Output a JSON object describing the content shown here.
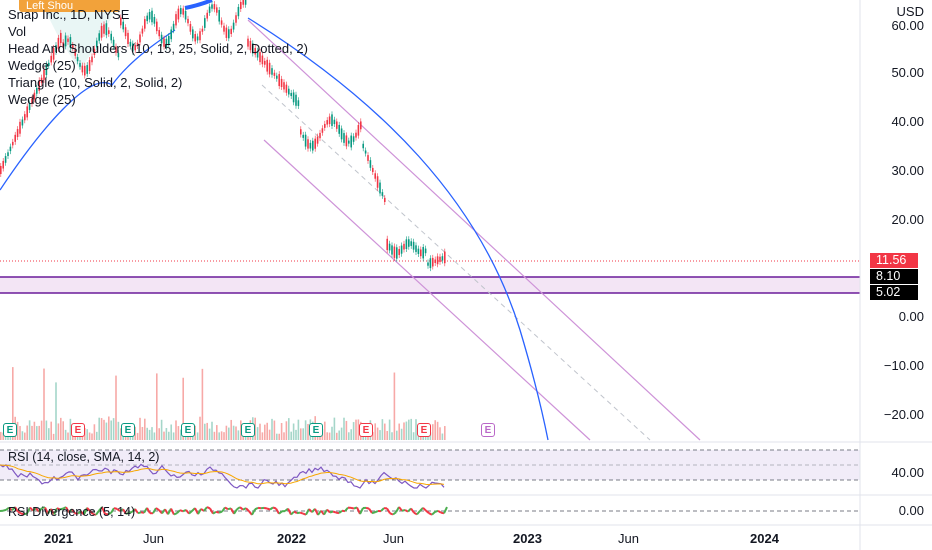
{
  "legend": {
    "symbol": "Snap Inc., 1D, NYSE",
    "lines": [
      "Vol",
      "Head And Shoulders (10, 15, 25, Solid, 2, Dotted, 2)",
      "Wedge (25)",
      "Triangle (10, Solid, 2, Solid, 2)",
      "Wedge (25)"
    ]
  },
  "badge": "Left Shou",
  "axis": {
    "currency": "USD",
    "price_ticks": [
      "60.00",
      "50.00",
      "40.00",
      "30.00",
      "20.00",
      "0.00",
      "−10.00",
      "−20.00"
    ],
    "rsi_ticks": [
      "40.00"
    ],
    "div_ticks": [
      "0.00"
    ],
    "time_ticks": [
      "2021",
      "Jun",
      "2022",
      "Jun",
      "2023",
      "Jun",
      "2024"
    ]
  },
  "price_tags": [
    {
      "label": "11.56",
      "color": "#f23645"
    },
    {
      "label": "8.10",
      "color": "#000000"
    },
    {
      "label": "5.02",
      "color": "#000000"
    }
  ],
  "earnings": [
    {
      "label": "E",
      "kind": "green"
    },
    {
      "label": "E",
      "kind": "red"
    },
    {
      "label": "E",
      "kind": "green"
    },
    {
      "label": "E",
      "kind": "green"
    },
    {
      "label": "E",
      "kind": "green"
    },
    {
      "label": "E",
      "kind": "green"
    },
    {
      "label": "E",
      "kind": "red"
    },
    {
      "label": "E",
      "kind": "red"
    },
    {
      "label": "E",
      "kind": "future"
    }
  ],
  "panes": {
    "rsi": "RSI (14, close, SMA, 14, 2)",
    "divergence": "RSI Divergence (5, 14)"
  },
  "colors": {
    "up": "#089981",
    "down": "#f23645",
    "rsi": "#7e57c2",
    "rsi_ma": "#f7a600",
    "channel": "#ce93d8",
    "arc": "#2962ff",
    "zone": "#6a1b9a",
    "earn_green": "#089981",
    "earn_red": "#f23645",
    "earn_future": "#ba68c8"
  }
}
